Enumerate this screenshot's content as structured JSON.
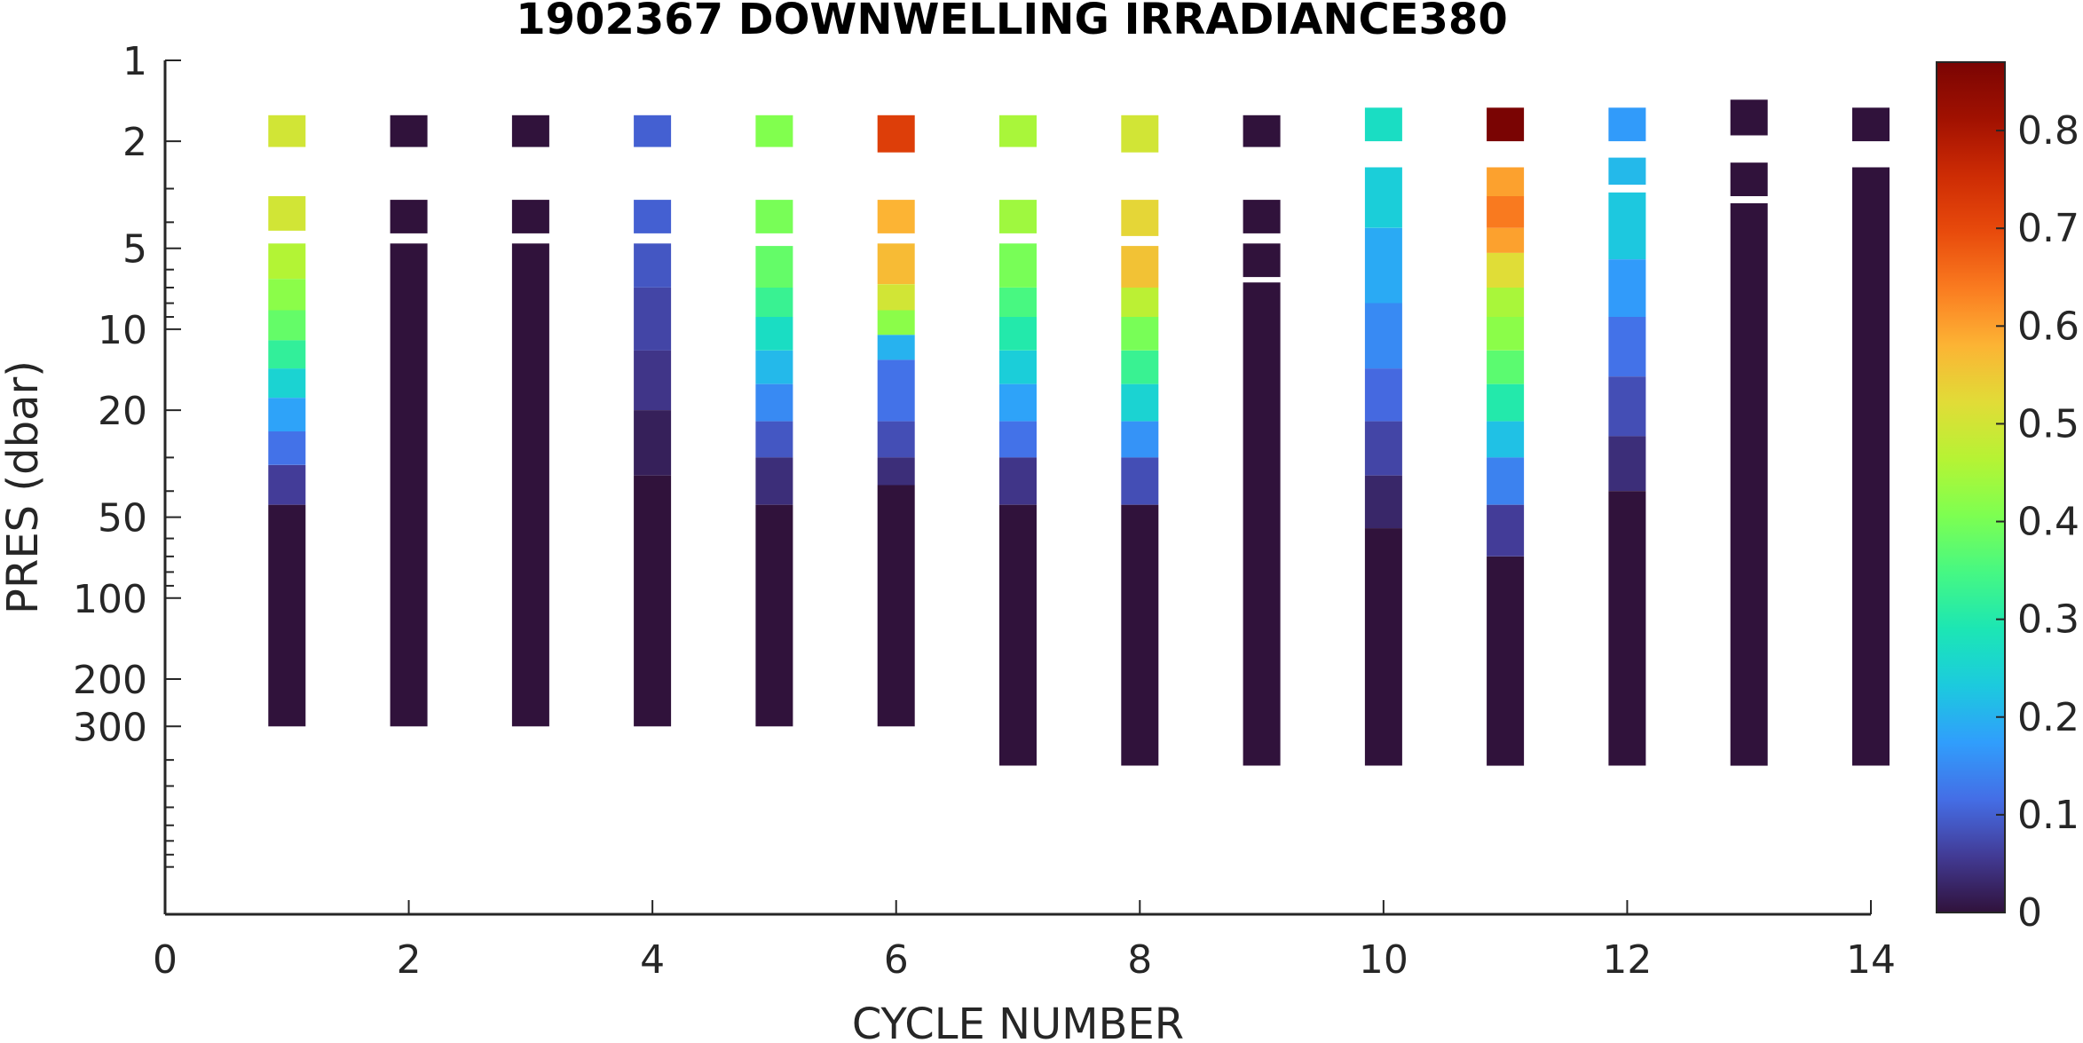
{
  "chart_data": {
    "type": "heatmap",
    "title": "1902367  DOWNWELLING IRRADIANCE380",
    "xlabel": "CYCLE NUMBER",
    "ylabel": "PRES (dbar)",
    "xlim": [
      0,
      14
    ],
    "xticks": [
      0,
      2,
      4,
      6,
      8,
      10,
      12,
      14
    ],
    "y_scale": "log",
    "y_reversed": true,
    "ylim": [
      1,
      1500
    ],
    "yticks": [
      1,
      2,
      5,
      10,
      20,
      50,
      100,
      200,
      300
    ],
    "colorbar": {
      "colormap": "turbo",
      "range": [
        0,
        0.87
      ],
      "ticks": [
        0,
        0.1,
        0.2,
        0.3,
        0.4,
        0.5,
        0.6,
        0.7,
        0.8
      ]
    },
    "profiles": [
      {
        "cycle": 1,
        "segments": [
          {
            "top": 1.6,
            "bottom": 2.1,
            "value": 0.5
          },
          {
            "top": 3.2,
            "bottom": 4.3,
            "value": 0.5
          },
          {
            "top": 4.8,
            "bottom": 6.5,
            "value": 0.46
          },
          {
            "top": 6.5,
            "bottom": 8.5,
            "value": 0.42
          },
          {
            "top": 8.5,
            "bottom": 11,
            "value": 0.38
          },
          {
            "top": 11,
            "bottom": 14,
            "value": 0.32
          },
          {
            "top": 14,
            "bottom": 18,
            "value": 0.25
          },
          {
            "top": 18,
            "bottom": 24,
            "value": 0.18
          },
          {
            "top": 24,
            "bottom": 32,
            "value": 0.12
          },
          {
            "top": 32,
            "bottom": 45,
            "value": 0.06
          },
          {
            "top": 45,
            "bottom": 300,
            "value": 0.0
          }
        ]
      },
      {
        "cycle": 2,
        "segments": [
          {
            "top": 1.6,
            "bottom": 2.1,
            "value": 0.0
          },
          {
            "top": 3.3,
            "bottom": 4.4,
            "value": 0.0
          },
          {
            "top": 4.8,
            "bottom": 300,
            "value": 0.0
          }
        ]
      },
      {
        "cycle": 3,
        "segments": [
          {
            "top": 1.6,
            "bottom": 2.1,
            "value": 0.0
          },
          {
            "top": 3.3,
            "bottom": 4.4,
            "value": 0.0
          },
          {
            "top": 4.8,
            "bottom": 300,
            "value": 0.0
          }
        ]
      },
      {
        "cycle": 4,
        "segments": [
          {
            "top": 1.6,
            "bottom": 2.1,
            "value": 0.1
          },
          {
            "top": 3.3,
            "bottom": 4.4,
            "value": 0.1
          },
          {
            "top": 4.8,
            "bottom": 7,
            "value": 0.09
          },
          {
            "top": 7,
            "bottom": 12,
            "value": 0.07
          },
          {
            "top": 12,
            "bottom": 20,
            "value": 0.05
          },
          {
            "top": 20,
            "bottom": 35,
            "value": 0.02
          },
          {
            "top": 35,
            "bottom": 300,
            "value": 0.0
          }
        ]
      },
      {
        "cycle": 5,
        "segments": [
          {
            "top": 1.6,
            "bottom": 2.1,
            "value": 0.41
          },
          {
            "top": 3.3,
            "bottom": 4.4,
            "value": 0.4
          },
          {
            "top": 4.9,
            "bottom": 7,
            "value": 0.38
          },
          {
            "top": 7,
            "bottom": 9,
            "value": 0.33
          },
          {
            "top": 9,
            "bottom": 12,
            "value": 0.27
          },
          {
            "top": 12,
            "bottom": 16,
            "value": 0.21
          },
          {
            "top": 16,
            "bottom": 22,
            "value": 0.15
          },
          {
            "top": 22,
            "bottom": 30,
            "value": 0.09
          },
          {
            "top": 30,
            "bottom": 45,
            "value": 0.04
          },
          {
            "top": 45,
            "bottom": 300,
            "value": 0.0
          }
        ]
      },
      {
        "cycle": 6,
        "segments": [
          {
            "top": 1.6,
            "bottom": 2.2,
            "value": 0.72
          },
          {
            "top": 3.3,
            "bottom": 4.4,
            "value": 0.58
          },
          {
            "top": 4.8,
            "bottom": 6.8,
            "value": 0.57
          },
          {
            "top": 6.8,
            "bottom": 8.5,
            "value": 0.5
          },
          {
            "top": 8.5,
            "bottom": 10.5,
            "value": 0.42
          },
          {
            "top": 10.5,
            "bottom": 13,
            "value": 0.2
          },
          {
            "top": 13,
            "bottom": 22,
            "value": 0.12
          },
          {
            "top": 22,
            "bottom": 30,
            "value": 0.08
          },
          {
            "top": 30,
            "bottom": 38,
            "value": 0.04
          },
          {
            "top": 38,
            "bottom": 300,
            "value": 0.0
          }
        ]
      },
      {
        "cycle": 7,
        "segments": [
          {
            "top": 1.6,
            "bottom": 2.1,
            "value": 0.45
          },
          {
            "top": 3.3,
            "bottom": 4.4,
            "value": 0.44
          },
          {
            "top": 4.8,
            "bottom": 7,
            "value": 0.4
          },
          {
            "top": 7,
            "bottom": 9,
            "value": 0.35
          },
          {
            "top": 9,
            "bottom": 12,
            "value": 0.3
          },
          {
            "top": 12,
            "bottom": 16,
            "value": 0.24
          },
          {
            "top": 16,
            "bottom": 22,
            "value": 0.18
          },
          {
            "top": 22,
            "bottom": 30,
            "value": 0.12
          },
          {
            "top": 30,
            "bottom": 45,
            "value": 0.05
          },
          {
            "top": 45,
            "bottom": 420,
            "value": 0.0
          }
        ]
      },
      {
        "cycle": 8,
        "segments": [
          {
            "top": 1.6,
            "bottom": 2.2,
            "value": 0.5
          },
          {
            "top": 3.3,
            "bottom": 4.5,
            "value": 0.53
          },
          {
            "top": 4.9,
            "bottom": 7,
            "value": 0.56
          },
          {
            "top": 7,
            "bottom": 9,
            "value": 0.47
          },
          {
            "top": 9,
            "bottom": 12,
            "value": 0.4
          },
          {
            "top": 12,
            "bottom": 16,
            "value": 0.33
          },
          {
            "top": 16,
            "bottom": 22,
            "value": 0.25
          },
          {
            "top": 22,
            "bottom": 30,
            "value": 0.16
          },
          {
            "top": 30,
            "bottom": 45,
            "value": 0.08
          },
          {
            "top": 45,
            "bottom": 420,
            "value": 0.0
          }
        ]
      },
      {
        "cycle": 9,
        "segments": [
          {
            "top": 1.6,
            "bottom": 2.1,
            "value": 0.0
          },
          {
            "top": 3.3,
            "bottom": 4.4,
            "value": 0.0
          },
          {
            "top": 4.8,
            "bottom": 6.4,
            "value": 0.0
          },
          {
            "top": 6.7,
            "bottom": 420,
            "value": 0.0
          }
        ]
      },
      {
        "cycle": 10,
        "segments": [
          {
            "top": 1.5,
            "bottom": 2.0,
            "value": 0.27
          },
          {
            "top": 2.5,
            "bottom": 4.2,
            "value": 0.24
          },
          {
            "top": 4.2,
            "bottom": 8,
            "value": 0.19
          },
          {
            "top": 8,
            "bottom": 14,
            "value": 0.15
          },
          {
            "top": 14,
            "bottom": 22,
            "value": 0.11
          },
          {
            "top": 22,
            "bottom": 35,
            "value": 0.07
          },
          {
            "top": 35,
            "bottom": 55,
            "value": 0.03
          },
          {
            "top": 55,
            "bottom": 420,
            "value": 0.0
          }
        ]
      },
      {
        "cycle": 11,
        "segments": [
          {
            "top": 1.5,
            "bottom": 2.0,
            "value": 0.87
          },
          {
            "top": 2.5,
            "bottom": 3.2,
            "value": 0.6
          },
          {
            "top": 3.2,
            "bottom": 4.2,
            "value": 0.64
          },
          {
            "top": 4.2,
            "bottom": 5.2,
            "value": 0.6
          },
          {
            "top": 5.2,
            "bottom": 7,
            "value": 0.52
          },
          {
            "top": 7,
            "bottom": 9,
            "value": 0.45
          },
          {
            "top": 9,
            "bottom": 12,
            "value": 0.42
          },
          {
            "top": 12,
            "bottom": 16,
            "value": 0.37
          },
          {
            "top": 16,
            "bottom": 22,
            "value": 0.3
          },
          {
            "top": 22,
            "bottom": 30,
            "value": 0.22
          },
          {
            "top": 30,
            "bottom": 45,
            "value": 0.14
          },
          {
            "top": 45,
            "bottom": 70,
            "value": 0.06
          },
          {
            "top": 70,
            "bottom": 420,
            "value": 0.0
          }
        ]
      },
      {
        "cycle": 12,
        "segments": [
          {
            "top": 1.5,
            "bottom": 2.0,
            "value": 0.17
          },
          {
            "top": 2.3,
            "bottom": 2.9,
            "value": 0.21
          },
          {
            "top": 3.1,
            "bottom": 5.5,
            "value": 0.23
          },
          {
            "top": 5.5,
            "bottom": 9,
            "value": 0.17
          },
          {
            "top": 9,
            "bottom": 15,
            "value": 0.12
          },
          {
            "top": 15,
            "bottom": 25,
            "value": 0.08
          },
          {
            "top": 25,
            "bottom": 40,
            "value": 0.04
          },
          {
            "top": 40,
            "bottom": 420,
            "value": 0.0
          }
        ]
      },
      {
        "cycle": 13,
        "segments": [
          {
            "top": 1.4,
            "bottom": 1.9,
            "value": 0.0
          },
          {
            "top": 2.4,
            "bottom": 3.2,
            "value": 0.0
          },
          {
            "top": 3.4,
            "bottom": 420,
            "value": 0.0
          }
        ]
      },
      {
        "cycle": 14,
        "segments": [
          {
            "top": 1.5,
            "bottom": 2.0,
            "value": 0.0
          },
          {
            "top": 2.5,
            "bottom": 420,
            "value": 0.0
          }
        ]
      }
    ]
  }
}
